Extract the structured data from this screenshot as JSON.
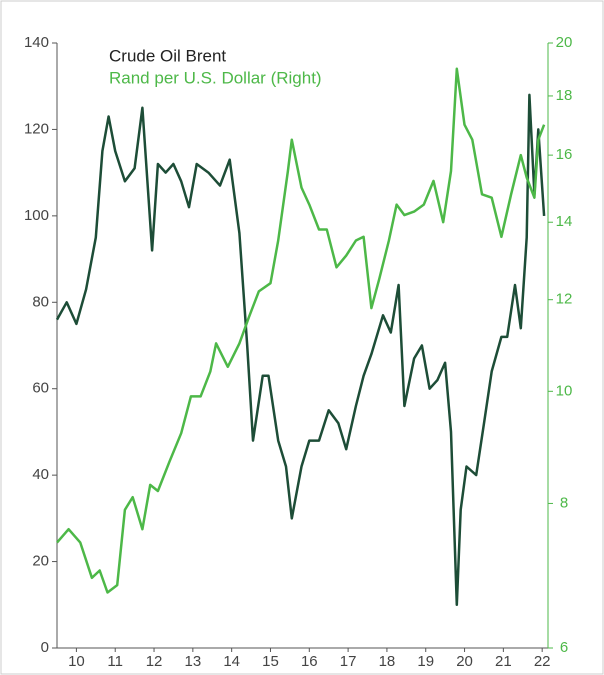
{
  "chart_data": {
    "type": "line",
    "series": [
      {
        "name": "Crude Oil Brent",
        "color": "#1d4d37",
        "axis": "y",
        "x": [
          2010.0,
          2010.25,
          2010.5,
          2010.75,
          2011.0,
          2011.17,
          2011.33,
          2011.5,
          2011.75,
          2012.0,
          2012.2,
          2012.45,
          2012.6,
          2012.8,
          2013.0,
          2013.2,
          2013.4,
          2013.6,
          2013.9,
          2014.2,
          2014.45,
          2014.7,
          2014.9,
          2015.05,
          2015.3,
          2015.45,
          2015.7,
          2015.9,
          2016.05,
          2016.3,
          2016.5,
          2016.75,
          2017.0,
          2017.25,
          2017.45,
          2017.7,
          2017.9,
          2018.1,
          2018.4,
          2018.6,
          2018.8,
          2018.95,
          2019.2,
          2019.4,
          2019.6,
          2019.8,
          2020.0,
          2020.15,
          2020.3,
          2020.4,
          2020.55,
          2020.8,
          2021.0,
          2021.2,
          2021.45,
          2021.6,
          2021.8,
          2021.95,
          2022.1,
          2022.17,
          2022.3,
          2022.4,
          2022.55
        ],
        "values": [
          76,
          80,
          75,
          83,
          95,
          115,
          123,
          115,
          108,
          111,
          125,
          92,
          112,
          110,
          112,
          108,
          102,
          112,
          110,
          107,
          113,
          96,
          70,
          48,
          63,
          63,
          48,
          42,
          30,
          42,
          48,
          48,
          55,
          52,
          46,
          56,
          63,
          68,
          77,
          73,
          84,
          56,
          67,
          70,
          60,
          62,
          66,
          50,
          10,
          32,
          42,
          40,
          52,
          64,
          72,
          72,
          84,
          74,
          95,
          128,
          105,
          120,
          100
        ]
      },
      {
        "name": "Rand per U.S. Dollar (Right)",
        "color": "#4db848",
        "axis": "y2",
        "x": [
          2010.0,
          2010.3,
          2010.6,
          2010.9,
          2011.1,
          2011.3,
          2011.55,
          2011.75,
          2011.95,
          2012.2,
          2012.4,
          2012.6,
          2012.9,
          2013.2,
          2013.45,
          2013.7,
          2013.95,
          2014.1,
          2014.4,
          2014.7,
          2014.95,
          2015.2,
          2015.5,
          2015.7,
          2015.95,
          2016.05,
          2016.3,
          2016.5,
          2016.75,
          2016.95,
          2017.2,
          2017.45,
          2017.7,
          2017.9,
          2018.1,
          2018.3,
          2018.55,
          2018.75,
          2018.95,
          2019.2,
          2019.45,
          2019.7,
          2019.95,
          2020.15,
          2020.3,
          2020.5,
          2020.7,
          2020.95,
          2021.2,
          2021.45,
          2021.7,
          2021.95,
          2022.1,
          2022.3,
          2022.4,
          2022.55
        ],
        "values": [
          7.4,
          7.6,
          7.4,
          6.9,
          7.0,
          6.7,
          6.8,
          7.9,
          8.1,
          7.6,
          8.3,
          8.2,
          8.7,
          9.2,
          9.9,
          9.9,
          10.4,
          11.0,
          10.5,
          11.0,
          11.6,
          12.2,
          12.4,
          13.5,
          15.5,
          16.5,
          15.0,
          14.5,
          13.8,
          13.8,
          12.8,
          13.1,
          13.5,
          13.6,
          11.8,
          12.5,
          13.5,
          14.5,
          14.2,
          14.3,
          14.5,
          15.2,
          14.0,
          15.5,
          19.0,
          17.0,
          16.5,
          14.8,
          14.7,
          13.6,
          14.8,
          16.0,
          15.3,
          14.7,
          16.5,
          17.0
        ]
      }
    ],
    "xlim": [
      2010,
      2022.65
    ],
    "xticks": [
      {
        "value": 2010.5,
        "label": "10"
      },
      {
        "value": 2011.5,
        "label": "11"
      },
      {
        "value": 2012.5,
        "label": "12"
      },
      {
        "value": 2013.5,
        "label": "13"
      },
      {
        "value": 2014.5,
        "label": "14"
      },
      {
        "value": 2015.5,
        "label": "15"
      },
      {
        "value": 2016.5,
        "label": "16"
      },
      {
        "value": 2017.5,
        "label": "17"
      },
      {
        "value": 2018.5,
        "label": "18"
      },
      {
        "value": 2019.5,
        "label": "19"
      },
      {
        "value": 2020.5,
        "label": "20"
      },
      {
        "value": 2021.5,
        "label": "21"
      },
      {
        "value": 2022.5,
        "label": "22"
      }
    ],
    "ylim": [
      0,
      140
    ],
    "yticks": [
      0,
      20,
      40,
      60,
      80,
      100,
      120,
      140
    ],
    "y2lim": [
      6,
      20
    ],
    "y2ticks": [
      6,
      8,
      10,
      12,
      14,
      16,
      18,
      20
    ],
    "y2scale": "log",
    "legend": "upper left"
  }
}
